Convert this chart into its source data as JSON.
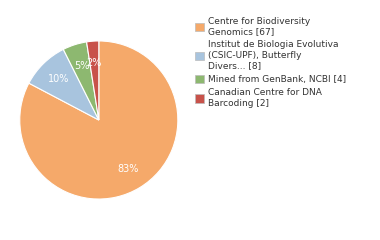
{
  "labels": [
    "Centre for Biodiversity\nGenomics [67]",
    "Institut de Biologia Evolutiva\n(CSIC-UPF), Butterfly\nDivers... [8]",
    "Mined from GenBank, NCBI [4]",
    "Canadian Centre for DNA\nBarcoding [2]"
  ],
  "values": [
    67,
    8,
    4,
    2
  ],
  "colors": [
    "#f5a96a",
    "#a8c4de",
    "#8db870",
    "#c8524a"
  ],
  "background_color": "#ffffff",
  "text_color": "#333333",
  "fontsize": 7.0,
  "legend_fontsize": 6.5
}
